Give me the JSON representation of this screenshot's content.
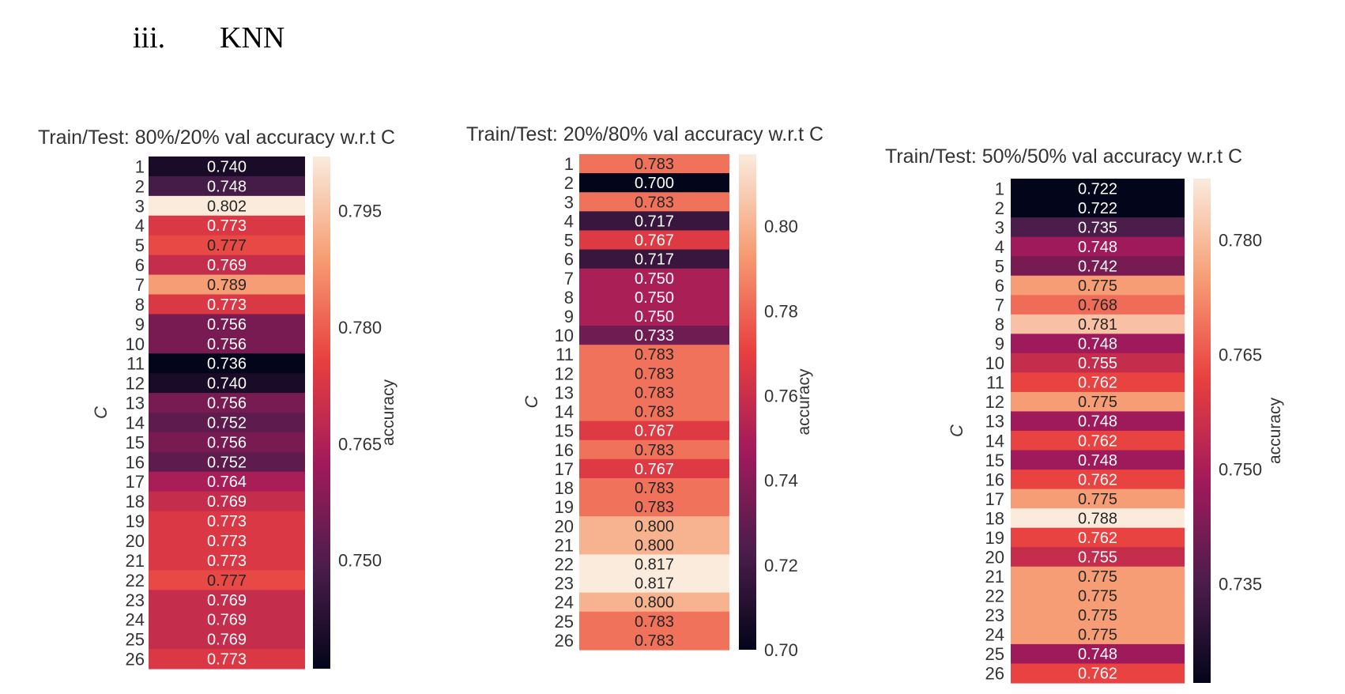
{
  "section": {
    "number": "iii.",
    "title": "KNN"
  },
  "colors": {
    "low": "#03051a",
    "mid_low": "#4c1d4b",
    "mid": "#a11a5b",
    "mid_high": "#e83f3f",
    "high_mid": "#f69c73",
    "high": "#faebdd"
  },
  "chart_data": [
    {
      "type": "heatmap",
      "title": "Train/Test: 80%/20% val accuracy w.r.t C",
      "ylabel": "C",
      "colorbar_label": "accuracy",
      "categories": [
        "1",
        "2",
        "3",
        "4",
        "5",
        "6",
        "7",
        "8",
        "9",
        "10",
        "11",
        "12",
        "13",
        "14",
        "15",
        "16",
        "17",
        "18",
        "19",
        "20",
        "21",
        "22",
        "23",
        "24",
        "25",
        "26"
      ],
      "values": [
        0.74,
        0.748,
        0.802,
        0.773,
        0.777,
        0.769,
        0.789,
        0.773,
        0.756,
        0.756,
        0.736,
        0.74,
        0.756,
        0.752,
        0.756,
        0.752,
        0.764,
        0.769,
        0.773,
        0.773,
        0.773,
        0.777,
        0.769,
        0.769,
        0.769,
        0.773
      ],
      "colorbar_ticks": [
        "0.795",
        "0.780",
        "0.765",
        "0.750"
      ],
      "vlim": [
        0.736,
        0.802
      ]
    },
    {
      "type": "heatmap",
      "title": "Train/Test: 20%/80% val accuracy w.r.t C",
      "ylabel": "C",
      "colorbar_label": "accuracy",
      "categories": [
        "1",
        "2",
        "3",
        "4",
        "5",
        "6",
        "7",
        "8",
        "9",
        "10",
        "11",
        "12",
        "13",
        "14",
        "15",
        "16",
        "17",
        "18",
        "19",
        "20",
        "21",
        "22",
        "23",
        "24",
        "25",
        "26"
      ],
      "values": [
        0.783,
        0.7,
        0.783,
        0.717,
        0.767,
        0.717,
        0.75,
        0.75,
        0.75,
        0.733,
        0.783,
        0.783,
        0.783,
        0.783,
        0.767,
        0.783,
        0.767,
        0.783,
        0.783,
        0.8,
        0.8,
        0.817,
        0.817,
        0.8,
        0.783,
        0.783
      ],
      "colorbar_ticks": [
        "0.80",
        "0.78",
        "0.76",
        "0.74",
        "0.72",
        "0.70"
      ],
      "vlim": [
        0.7,
        0.817
      ]
    },
    {
      "type": "heatmap",
      "title": "Train/Test: 50%/50% val accuracy w.r.t C",
      "ylabel": "C",
      "colorbar_label": "accuracy",
      "categories": [
        "1",
        "2",
        "3",
        "4",
        "5",
        "6",
        "7",
        "8",
        "9",
        "10",
        "11",
        "12",
        "13",
        "14",
        "15",
        "16",
        "17",
        "18",
        "19",
        "20",
        "21",
        "22",
        "23",
        "24",
        "25",
        "26"
      ],
      "values": [
        0.722,
        0.722,
        0.735,
        0.748,
        0.742,
        0.775,
        0.768,
        0.781,
        0.748,
        0.755,
        0.762,
        0.775,
        0.748,
        0.762,
        0.748,
        0.762,
        0.775,
        0.788,
        0.762,
        0.755,
        0.775,
        0.775,
        0.775,
        0.775,
        0.748,
        0.762
      ],
      "colorbar_ticks": [
        "0.780",
        "0.765",
        "0.750",
        "0.735"
      ],
      "vlim": [
        0.722,
        0.788
      ]
    }
  ]
}
